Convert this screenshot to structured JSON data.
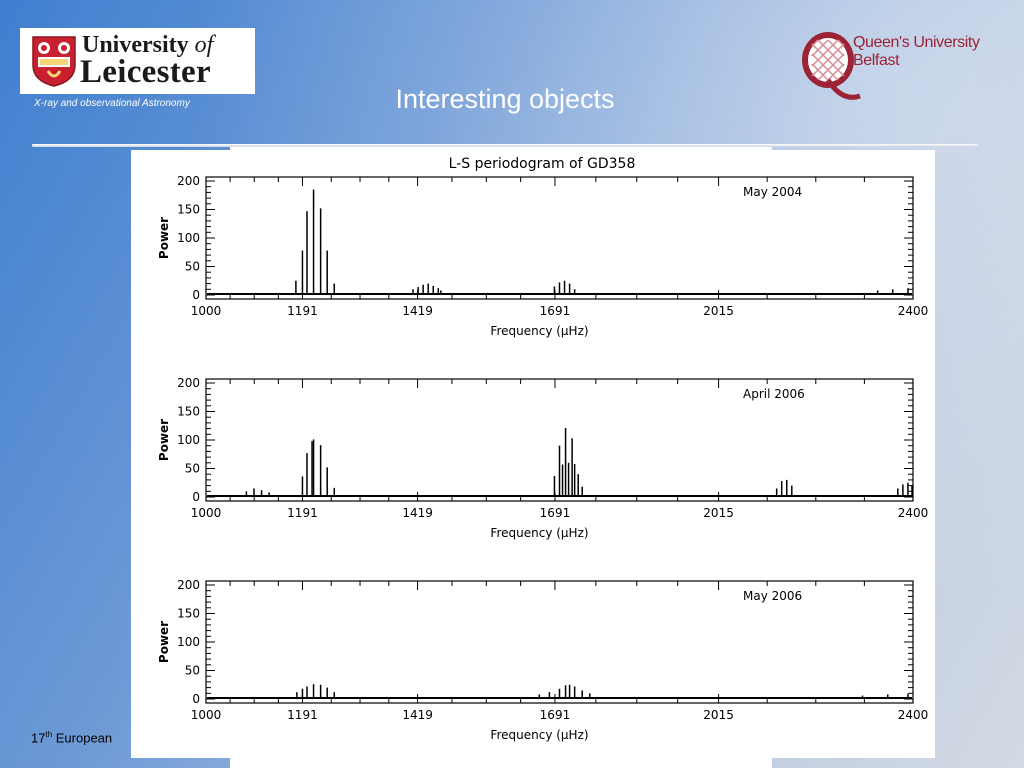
{
  "header": {
    "university_line1": "University",
    "university_of": "of",
    "university_line2": "Leicester",
    "subtitle": "X-ray and observational Astronomy",
    "title": "Interesting objects",
    "qub_line1": "Queen's University",
    "qub_line2": "Belfast"
  },
  "footer": {
    "prefix": "17",
    "sup": "th",
    "text": " European"
  },
  "colors": {
    "background_start": "#3f7fd0",
    "background_end": "#d4dae3",
    "qub_red": "#9b2335",
    "plot_ink": "#000000"
  },
  "chart_data": {
    "title": "L-S periodogram of GD358",
    "type": "line",
    "xlabel": "Frequency (μHz)",
    "ylabel": "Power",
    "xlim": [
      1000,
      2400
    ],
    "ylim": [
      0,
      200
    ],
    "x_ticks": [
      1000,
      1191,
      1419,
      1691,
      2015,
      2400
    ],
    "y_ticks": [
      0,
      50,
      100,
      150,
      200
    ],
    "panels": [
      {
        "label": "May 2004",
        "peaks": [
          {
            "x": 1178,
            "y": 25
          },
          {
            "x": 1191,
            "y": 78
          },
          {
            "x": 1200,
            "y": 147
          },
          {
            "x": 1213,
            "y": 185
          },
          {
            "x": 1227,
            "y": 152
          },
          {
            "x": 1240,
            "y": 78
          },
          {
            "x": 1254,
            "y": 20
          },
          {
            "x": 1410,
            "y": 10
          },
          {
            "x": 1420,
            "y": 14
          },
          {
            "x": 1430,
            "y": 18
          },
          {
            "x": 1440,
            "y": 20
          },
          {
            "x": 1450,
            "y": 16
          },
          {
            "x": 1460,
            "y": 12
          },
          {
            "x": 1465,
            "y": 8
          },
          {
            "x": 1690,
            "y": 15
          },
          {
            "x": 1700,
            "y": 22
          },
          {
            "x": 1710,
            "y": 25
          },
          {
            "x": 1720,
            "y": 20
          },
          {
            "x": 1730,
            "y": 10
          },
          {
            "x": 2330,
            "y": 8
          },
          {
            "x": 2360,
            "y": 10
          },
          {
            "x": 2390,
            "y": 12
          }
        ]
      },
      {
        "label": "April 2006",
        "peaks": [
          {
            "x": 1080,
            "y": 10
          },
          {
            "x": 1095,
            "y": 15
          },
          {
            "x": 1110,
            "y": 12
          },
          {
            "x": 1125,
            "y": 8
          },
          {
            "x": 1191,
            "y": 36
          },
          {
            "x": 1200,
            "y": 77
          },
          {
            "x": 1210,
            "y": 98
          },
          {
            "x": 1213,
            "y": 101
          },
          {
            "x": 1227,
            "y": 91
          },
          {
            "x": 1240,
            "y": 52
          },
          {
            "x": 1254,
            "y": 16
          },
          {
            "x": 1690,
            "y": 37
          },
          {
            "x": 1700,
            "y": 90
          },
          {
            "x": 1706,
            "y": 57
          },
          {
            "x": 1712,
            "y": 121
          },
          {
            "x": 1718,
            "y": 60
          },
          {
            "x": 1725,
            "y": 103
          },
          {
            "x": 1730,
            "y": 58
          },
          {
            "x": 1737,
            "y": 40
          },
          {
            "x": 1745,
            "y": 18
          },
          {
            "x": 2130,
            "y": 15
          },
          {
            "x": 2140,
            "y": 28
          },
          {
            "x": 2150,
            "y": 30
          },
          {
            "x": 2160,
            "y": 20
          },
          {
            "x": 2370,
            "y": 15
          },
          {
            "x": 2380,
            "y": 22
          },
          {
            "x": 2390,
            "y": 25
          },
          {
            "x": 2398,
            "y": 20
          }
        ]
      },
      {
        "label": "May 2006",
        "peaks": [
          {
            "x": 1180,
            "y": 12
          },
          {
            "x": 1191,
            "y": 18
          },
          {
            "x": 1200,
            "y": 22
          },
          {
            "x": 1213,
            "y": 26
          },
          {
            "x": 1227,
            "y": 25
          },
          {
            "x": 1240,
            "y": 20
          },
          {
            "x": 1254,
            "y": 12
          },
          {
            "x": 1660,
            "y": 8
          },
          {
            "x": 1680,
            "y": 12
          },
          {
            "x": 1700,
            "y": 18
          },
          {
            "x": 1712,
            "y": 24
          },
          {
            "x": 1720,
            "y": 25
          },
          {
            "x": 1730,
            "y": 22
          },
          {
            "x": 1745,
            "y": 15
          },
          {
            "x": 1760,
            "y": 10
          },
          {
            "x": 2300,
            "y": 6
          },
          {
            "x": 2350,
            "y": 8
          },
          {
            "x": 2390,
            "y": 9
          }
        ]
      }
    ]
  }
}
